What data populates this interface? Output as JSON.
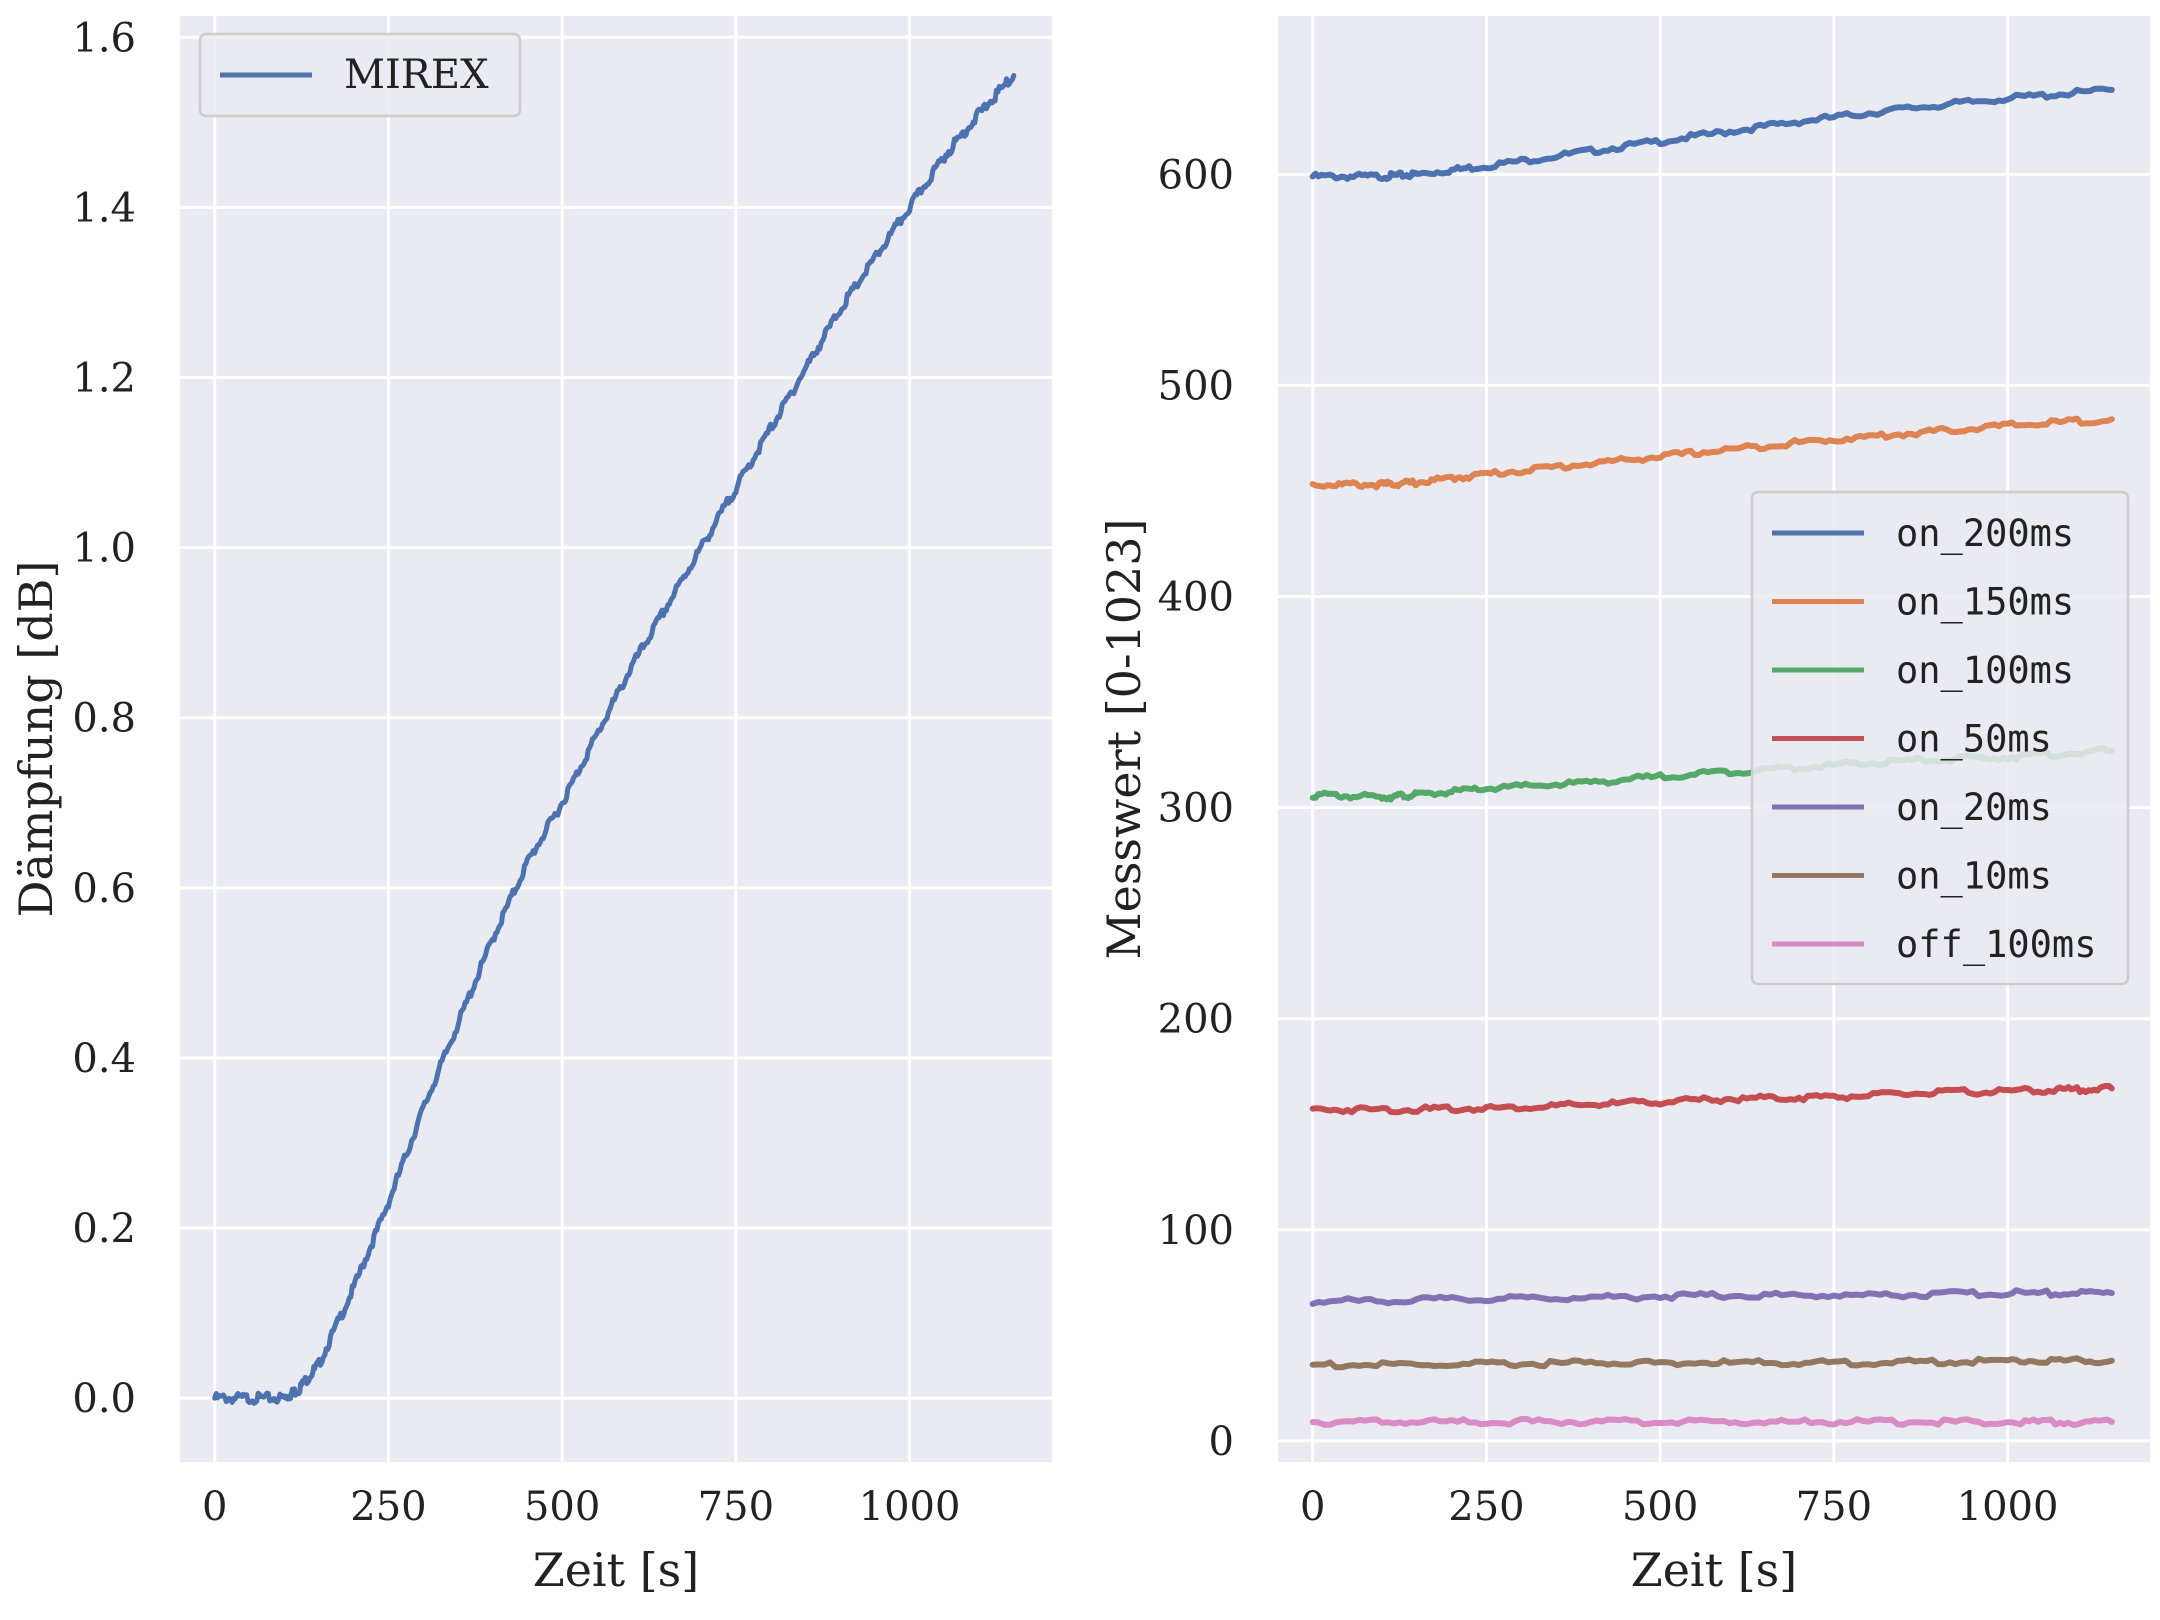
{
  "colors": {
    "background": "#eaeaf2",
    "grid": "#ffffff",
    "legend_face": "#eaeaf2",
    "legend_edge": "#cccccc"
  },
  "chart_data": [
    {
      "type": "line",
      "xlabel": "Zeit [s]",
      "ylabel": "Dämpfung [dB]",
      "xlim": [
        -50,
        1205
      ],
      "ylim": [
        -0.075,
        1.625
      ],
      "xticks": [
        0,
        250,
        500,
        750,
        1000
      ],
      "xtick_labels": [
        "0",
        "250",
        "500",
        "750",
        "1000"
      ],
      "yticks": [
        0.0,
        0.2,
        0.4,
        0.6,
        0.8,
        1.0,
        1.2,
        1.4,
        1.6
      ],
      "ytick_labels": [
        "0.0",
        "0.2",
        "0.4",
        "0.6",
        "0.8",
        "1.0",
        "1.2",
        "1.4",
        "1.6"
      ],
      "grid": true,
      "legend_position": "upper left",
      "series": [
        {
          "name": "MIREX",
          "color": "#4c72b0",
          "x": [
            0,
            50,
            100,
            120,
            150,
            200,
            250,
            300,
            350,
            400,
            450,
            500,
            550,
            600,
            650,
            700,
            750,
            800,
            850,
            900,
            950,
            1000,
            1050,
            1100,
            1150
          ],
          "y": [
            0.0,
            0.0,
            0.0,
            0.01,
            0.04,
            0.13,
            0.23,
            0.34,
            0.44,
            0.54,
            0.63,
            0.7,
            0.78,
            0.86,
            0.93,
            1.0,
            1.07,
            1.14,
            1.21,
            1.28,
            1.34,
            1.4,
            1.46,
            1.51,
            1.555
          ]
        }
      ]
    },
    {
      "type": "line",
      "xlabel": "Zeit [s]",
      "ylabel": "Messwert [0-1023]",
      "xlim": [
        -50,
        1205
      ],
      "ylim": [
        -10,
        675
      ],
      "xticks": [
        0,
        250,
        500,
        750,
        1000
      ],
      "xtick_labels": [
        "0",
        "250",
        "500",
        "750",
        "1000"
      ],
      "yticks": [
        0,
        100,
        200,
        300,
        400,
        500,
        600
      ],
      "ytick_labels": [
        "0",
        "100",
        "200",
        "300",
        "400",
        "500",
        "600"
      ],
      "grid": true,
      "legend_position": "center right",
      "series": [
        {
          "name": "on_200ms",
          "color": "#4c72b0",
          "x": [
            0,
            100,
            150,
            250,
            400,
            550,
            700,
            850,
            1000,
            1150
          ],
          "y": [
            599,
            599,
            600,
            604,
            611,
            618,
            625,
            631,
            636,
            640
          ]
        },
        {
          "name": "on_150ms",
          "color": "#dd8452",
          "x": [
            0,
            100,
            150,
            250,
            400,
            550,
            700,
            850,
            1000,
            1150
          ],
          "y": [
            453,
            453,
            454,
            458,
            463,
            468,
            473,
            477,
            481,
            484
          ]
        },
        {
          "name": "on_100ms",
          "color": "#55a868",
          "x": [
            0,
            100,
            150,
            250,
            400,
            550,
            700,
            850,
            1000,
            1150
          ],
          "y": [
            306,
            305,
            306,
            309,
            312,
            316,
            319,
            322,
            324,
            327
          ]
        },
        {
          "name": "on_50ms",
          "color": "#c44e52",
          "x": [
            0,
            150,
            300,
            450,
            600,
            750,
            900,
            1050,
            1150
          ],
          "y": [
            157,
            157,
            158,
            160,
            162,
            163,
            165,
            166,
            167
          ]
        },
        {
          "name": "on_20ms",
          "color": "#8172b3",
          "x": [
            0,
            200,
            400,
            600,
            800,
            1000,
            1150
          ],
          "y": [
            66,
            67,
            68,
            69,
            69,
            70,
            70
          ]
        },
        {
          "name": "on_10ms",
          "color": "#937860",
          "x": [
            0,
            200,
            400,
            600,
            800,
            1000,
            1150
          ],
          "y": [
            36,
            36,
            37,
            37,
            37,
            38,
            38
          ]
        },
        {
          "name": "off_100ms",
          "color": "#da8bc3",
          "x": [
            0,
            200,
            400,
            600,
            800,
            1000,
            1150
          ],
          "y": [
            9,
            9,
            9,
            9,
            9,
            9,
            9
          ]
        }
      ]
    }
  ]
}
